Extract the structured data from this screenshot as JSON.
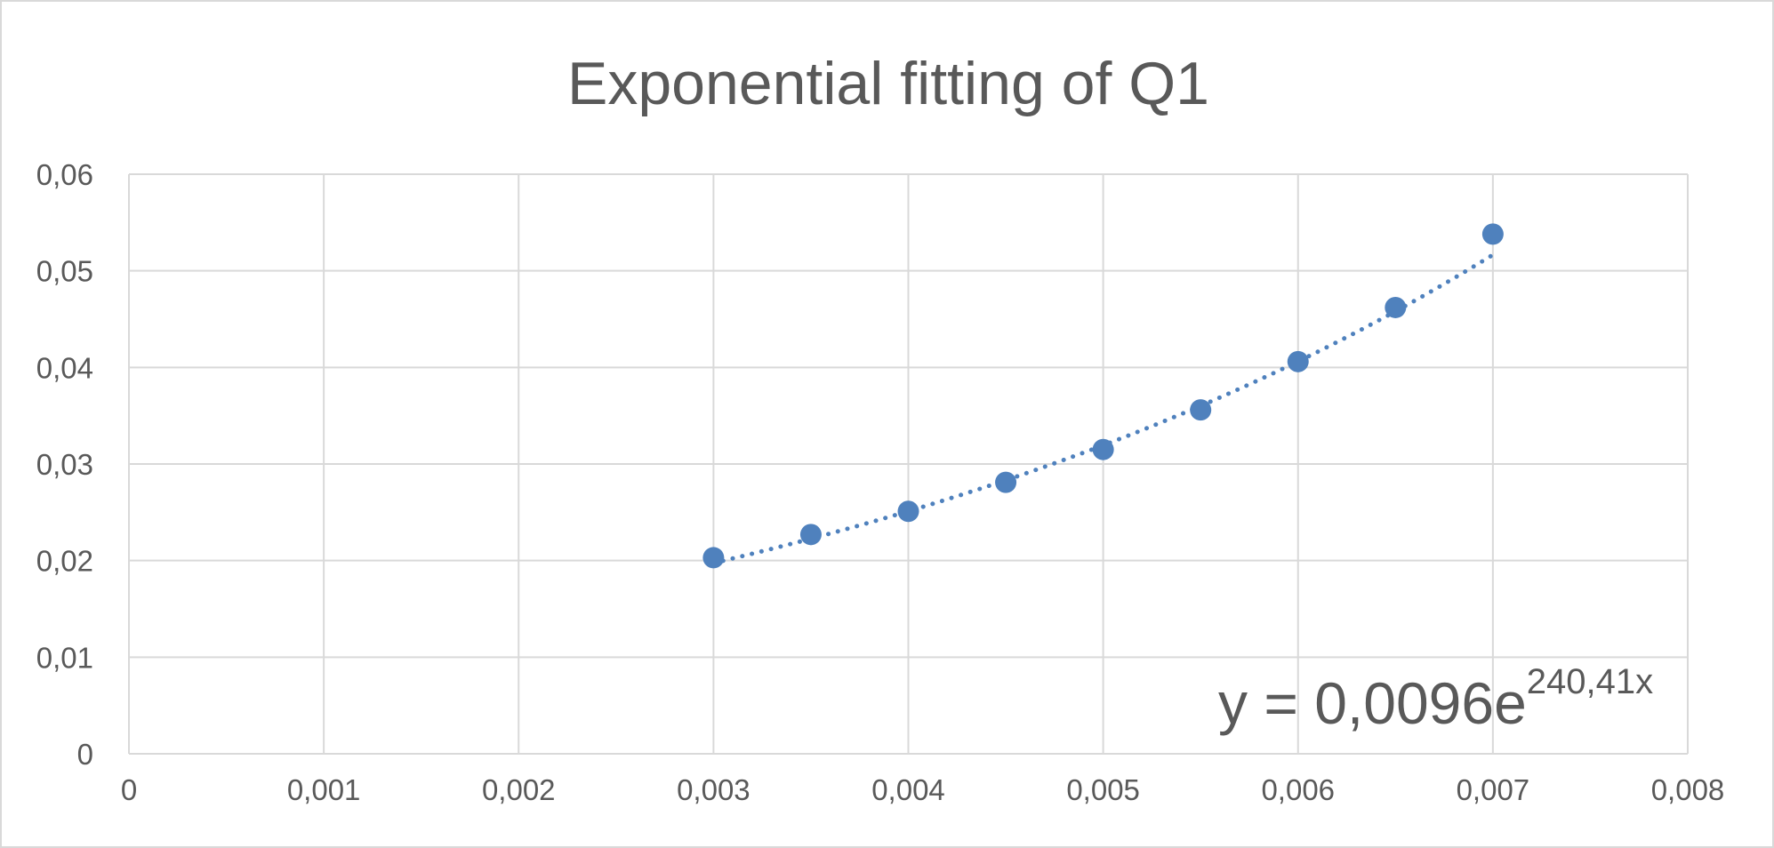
{
  "chart_data": {
    "type": "scatter",
    "title": "Exponential fitting of Q1",
    "xlabel": "",
    "ylabel": "",
    "xlim": [
      0,
      0.008
    ],
    "ylim": [
      0,
      0.06
    ],
    "x_ticks": [
      "0",
      "0,001",
      "0,002",
      "0,003",
      "0,004",
      "0,005",
      "0,006",
      "0,007",
      "0,008"
    ],
    "y_ticks": [
      "0",
      "0,01",
      "0,02",
      "0,03",
      "0,04",
      "0,05",
      "0,06"
    ],
    "grid": true,
    "legend": "none",
    "series": [
      {
        "x": [
          0.003,
          0.0035,
          0.004,
          0.0045,
          0.005,
          0.0055,
          0.006,
          0.0065,
          0.007
        ],
        "y": [
          0.0203,
          0.0227,
          0.0251,
          0.0281,
          0.0315,
          0.0356,
          0.0406,
          0.0462,
          0.0538
        ],
        "color": "#4f81bd"
      }
    ],
    "trendline": {
      "type": "exponential",
      "a": 0.0096,
      "b": 240.41,
      "x_range": [
        0.003,
        0.007
      ],
      "style": "dotted",
      "color": "#4f81bd",
      "equation_main": "y = 0,0096e",
      "equation_exponent": "240,41x"
    }
  }
}
